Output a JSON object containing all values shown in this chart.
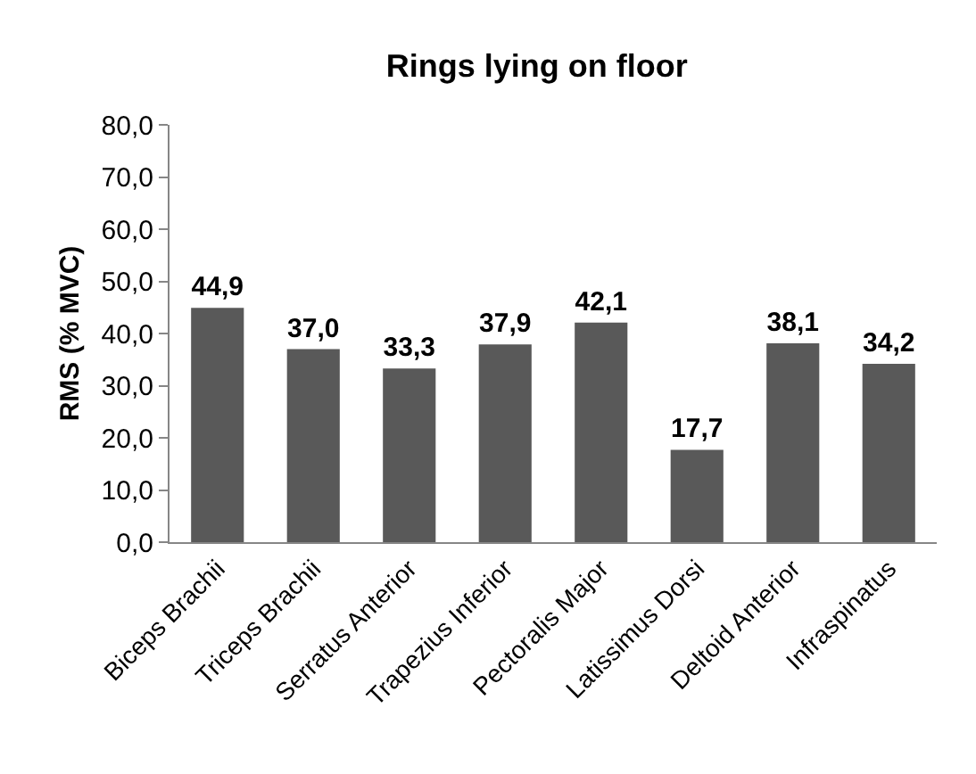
{
  "chart_data": {
    "type": "bar",
    "title": "Rings lying on floor",
    "ylabel": "RMS (% MVC)",
    "categories": [
      "Biceps Brachii",
      "Triceps Brachii",
      "Serratus Anterior",
      "Trapezius Inferior",
      "Pectoralis Major",
      "Latissimus Dorsi",
      "Deltoid Anterior",
      "Infraspinatus"
    ],
    "values": [
      44.9,
      37.0,
      33.3,
      37.9,
      42.1,
      17.7,
      38.1,
      34.2
    ],
    "value_labels": [
      "44,9",
      "37,0",
      "33,3",
      "37,9",
      "42,1",
      "17,7",
      "38,1",
      "34,2"
    ],
    "color": "#595959",
    "ylim": [
      0,
      80
    ],
    "yticks": [
      {
        "value": 0,
        "label": "0,0"
      },
      {
        "value": 10,
        "label": "10,0"
      },
      {
        "value": 20,
        "label": "20,0"
      },
      {
        "value": 30,
        "label": "30,0"
      },
      {
        "value": 40,
        "label": "40,0"
      },
      {
        "value": 50,
        "label": "50,0"
      },
      {
        "value": 60,
        "label": "60,0"
      },
      {
        "value": 70,
        "label": "70,0"
      },
      {
        "value": 80,
        "label": "80,0"
      }
    ],
    "grid": false
  }
}
